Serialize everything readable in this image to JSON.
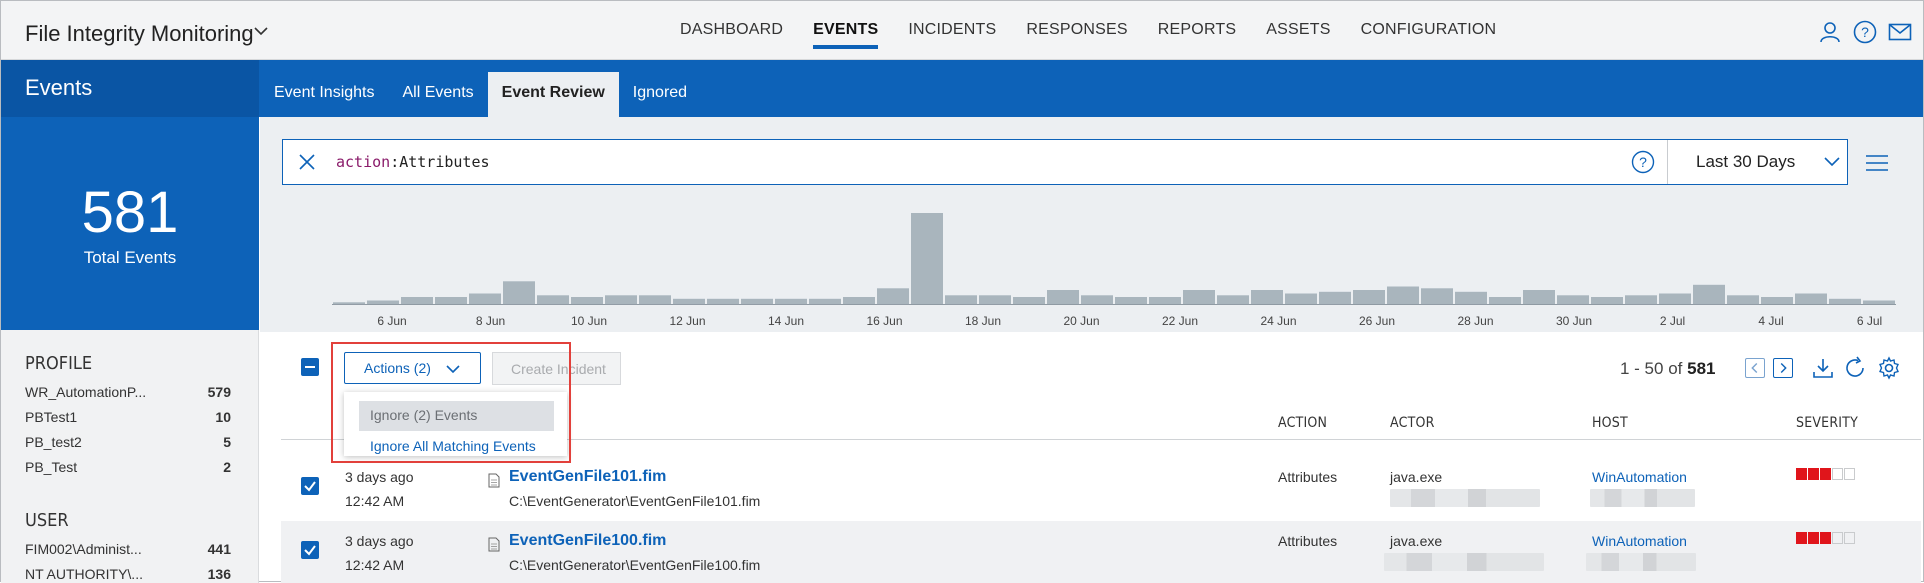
{
  "app": {
    "title": "File Integrity Monitoring",
    "nav": [
      "DASHBOARD",
      "EVENTS",
      "INCIDENTS",
      "RESPONSES",
      "REPORTS",
      "ASSETS",
      "CONFIGURATION"
    ],
    "active_nav": "EVENTS"
  },
  "section": {
    "title": "Events",
    "tabs": [
      "Event Insights",
      "All Events",
      "Event Review",
      "Ignored"
    ],
    "active_tab": "Event Review"
  },
  "summary": {
    "total": "581",
    "label": "Total Events"
  },
  "facets": {
    "profile": {
      "title": "PROFILE",
      "items": [
        {
          "label": "WR_AutomationP...",
          "count": "579"
        },
        {
          "label": "PBTest1",
          "count": "10"
        },
        {
          "label": "PB_test2",
          "count": "5"
        },
        {
          "label": "PB_Test",
          "count": "2"
        }
      ]
    },
    "user": {
      "title": "USER",
      "items": [
        {
          "label": "FIM002\\Administ...",
          "count": "441"
        },
        {
          "label": "NT AUTHORITY\\...",
          "count": "136"
        }
      ]
    }
  },
  "search": {
    "query_key": "action",
    "query_sep": ":",
    "query_value": "Attributes",
    "range": "Last 30 Days"
  },
  "histogram": {
    "values": [
      1,
      2,
      4,
      4,
      6,
      13,
      5,
      4,
      5,
      5,
      3,
      3,
      3,
      3,
      3,
      4,
      9,
      52,
      5,
      5,
      4,
      8,
      5,
      4,
      4,
      8,
      5,
      8,
      6,
      7,
      8,
      10,
      9,
      7,
      4,
      8,
      5,
      4,
      5,
      6,
      11,
      5,
      4,
      6,
      3,
      2
    ],
    "date_labels": [
      "6 Jun",
      "8 Jun",
      "10 Jun",
      "12 Jun",
      "14 Jun",
      "16 Jun",
      "18 Jun",
      "20 Jun",
      "22 Jun",
      "24 Jun",
      "26 Jun",
      "28 Jun",
      "30 Jun",
      "2 Jul",
      "4 Jul",
      "6 Jul"
    ],
    "bar_color": "#a9b5bd"
  },
  "toolbar": {
    "actions_label": "Actions (2)",
    "create_incident_label": "Create Incident",
    "menu": {
      "ignore_selected": "Ignore (2) Events",
      "ignore_all": "Ignore All Matching Events"
    },
    "range_prefix": "1 - 50 of",
    "range_total": "581"
  },
  "table": {
    "columns": {
      "action": "ACTION",
      "actor": "ACTOR",
      "host": "HOST",
      "severity": "SEVERITY"
    },
    "rows": [
      {
        "when": "3 days ago",
        "time": "12:42 AM",
        "file": "EventGenFile101.fim",
        "path": "C:\\EventGenerator\\EventGenFile101.fim",
        "action": "Attributes",
        "actor": "java.exe",
        "host": "WinAutomation",
        "severity": 3
      },
      {
        "when": "3 days ago",
        "time": "12:42 AM",
        "file": "EventGenFile100.fim",
        "path": "C:\\EventGenerator\\EventGenFile100.fim",
        "action": "Attributes",
        "actor": "java.exe",
        "host": "WinAutomation",
        "severity": 3
      }
    ]
  },
  "colors": {
    "brand_blue": "#0d62b8",
    "severity_red": "#e0151b",
    "highlight_red": "#e2403b"
  }
}
